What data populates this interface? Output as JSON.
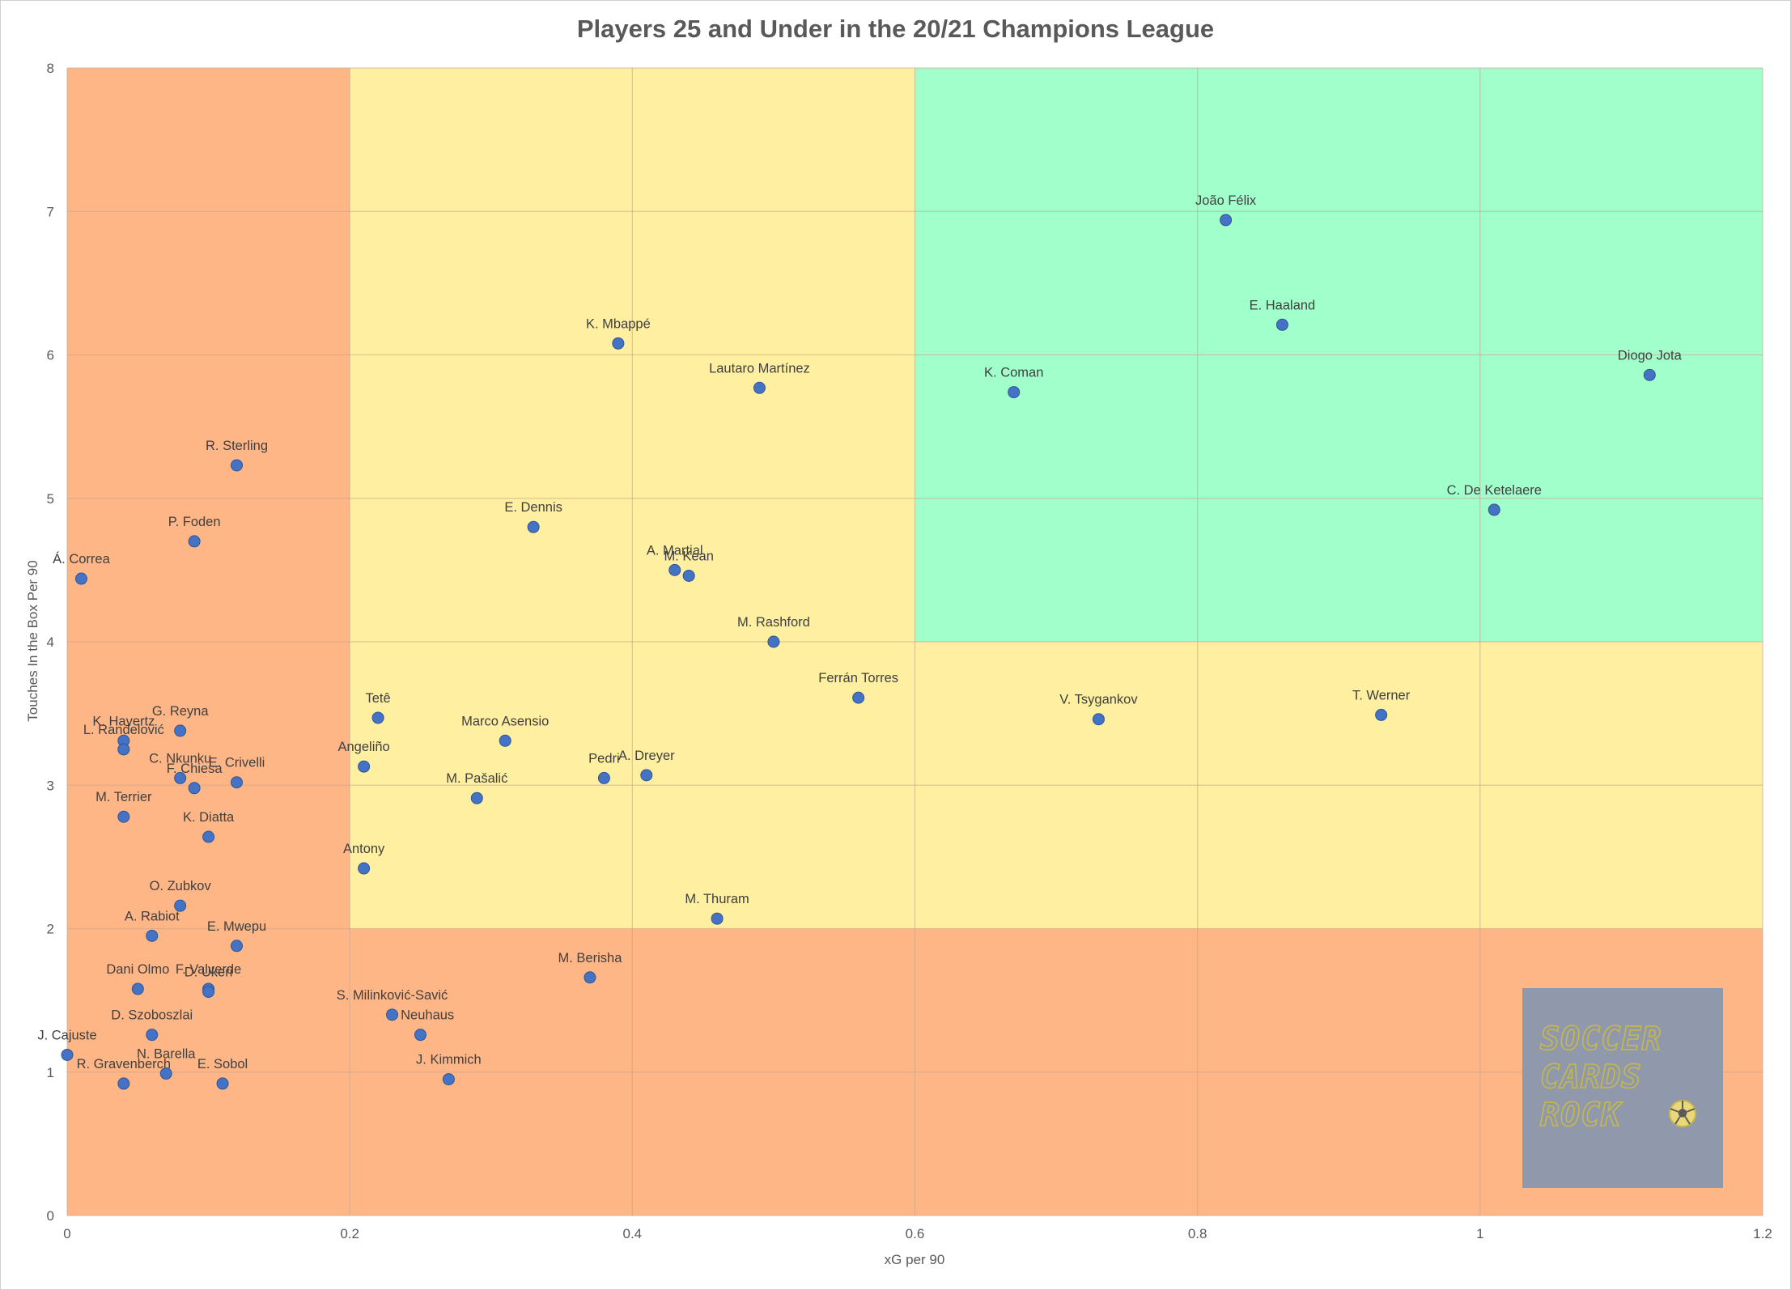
{
  "chart_data": {
    "type": "scatter",
    "title": "Players 25 and Under in the 20/21 Champions League",
    "xlabel": "xG per 90",
    "ylabel": "Touches In the Box Per 90",
    "xlim": [
      0,
      1.2
    ],
    "ylim": [
      0,
      8
    ],
    "x_ticks": [
      "0",
      "0.2",
      "0.4",
      "0.6",
      "0.8",
      "1",
      "1.2"
    ],
    "y_ticks": [
      "0",
      "1",
      "2",
      "3",
      "4",
      "5",
      "6",
      "7",
      "8"
    ],
    "grid": true,
    "regions": [
      {
        "x": [
          0,
          0.2
        ],
        "y": [
          0,
          8
        ],
        "color": "#ffa66b"
      },
      {
        "x": [
          0.2,
          1.2
        ],
        "y": [
          0,
          2
        ],
        "color": "#ffa66b"
      },
      {
        "x": [
          0.2,
          0.6
        ],
        "y": [
          2,
          8
        ],
        "color": "#ffeb8c"
      },
      {
        "x": [
          0.6,
          1.2
        ],
        "y": [
          2,
          4
        ],
        "color": "#ffeb8c"
      },
      {
        "x": [
          0.6,
          1.2
        ],
        "y": [
          4,
          8
        ],
        "color": "#8cffc0"
      }
    ],
    "point_color": "#4472c4",
    "points": [
      {
        "label": "João Félix",
        "x": 0.82,
        "y": 6.94
      },
      {
        "label": "E. Haaland",
        "x": 0.86,
        "y": 6.21
      },
      {
        "label": "Diogo Jota",
        "x": 1.12,
        "y": 5.86
      },
      {
        "label": "K. Coman",
        "x": 0.67,
        "y": 5.74
      },
      {
        "label": "C. De Ketelaere",
        "x": 1.01,
        "y": 4.92
      },
      {
        "label": "K. Mbappé",
        "x": 0.39,
        "y": 6.08
      },
      {
        "label": "Lautaro Martínez",
        "x": 0.49,
        "y": 5.77
      },
      {
        "label": "E. Dennis",
        "x": 0.33,
        "y": 4.8
      },
      {
        "label": "A. Martial",
        "x": 0.43,
        "y": 4.5
      },
      {
        "label": "M. Kean",
        "x": 0.44,
        "y": 4.46
      },
      {
        "label": "M. Rashford",
        "x": 0.5,
        "y": 4.0
      },
      {
        "label": "Ferrán Torres",
        "x": 0.56,
        "y": 3.61
      },
      {
        "label": "V. Tsygankov",
        "x": 0.73,
        "y": 3.46
      },
      {
        "label": "T. Werner",
        "x": 0.93,
        "y": 3.49
      },
      {
        "label": "Tetê",
        "x": 0.22,
        "y": 3.47
      },
      {
        "label": "Marco Asensio",
        "x": 0.31,
        "y": 3.31
      },
      {
        "label": "Angeliño",
        "x": 0.21,
        "y": 3.13
      },
      {
        "label": "Pedri",
        "x": 0.38,
        "y": 3.05
      },
      {
        "label": "A. Dreyer",
        "x": 0.41,
        "y": 3.07
      },
      {
        "label": "M. Pašalić",
        "x": 0.29,
        "y": 2.91
      },
      {
        "label": "Antony",
        "x": 0.21,
        "y": 2.42
      },
      {
        "label": "M. Thuram",
        "x": 0.46,
        "y": 2.07
      },
      {
        "label": "M. Berisha",
        "x": 0.37,
        "y": 1.66
      },
      {
        "label": "S. Milinković-Savić",
        "x": 0.23,
        "y": 1.4
      },
      {
        "label": "F. Neuhaus",
        "x": 0.25,
        "y": 1.26
      },
      {
        "label": "J. Kimmich",
        "x": 0.27,
        "y": 0.95
      },
      {
        "label": "R. Sterling",
        "x": 0.12,
        "y": 5.23
      },
      {
        "label": "P. Foden",
        "x": 0.09,
        "y": 4.7
      },
      {
        "label": "Á. Correa",
        "x": 0.01,
        "y": 4.44
      },
      {
        "label": "G. Reyna",
        "x": 0.08,
        "y": 3.38
      },
      {
        "label": "K. Havertz",
        "x": 0.04,
        "y": 3.31
      },
      {
        "label": "L. Ranđelović",
        "x": 0.04,
        "y": 3.25
      },
      {
        "label": "C. Nkunku",
        "x": 0.08,
        "y": 3.05
      },
      {
        "label": "F. Chiesa",
        "x": 0.09,
        "y": 2.98
      },
      {
        "label": "E. Crivelli",
        "x": 0.12,
        "y": 3.02
      },
      {
        "label": "M. Terrier",
        "x": 0.04,
        "y": 2.78
      },
      {
        "label": "K. Diatta",
        "x": 0.1,
        "y": 2.64
      },
      {
        "label": "O. Zubkov",
        "x": 0.08,
        "y": 2.16
      },
      {
        "label": "A. Rabiot",
        "x": 0.06,
        "y": 1.95
      },
      {
        "label": "E. Mwepu",
        "x": 0.12,
        "y": 1.88
      },
      {
        "label": "Dani Olmo",
        "x": 0.05,
        "y": 1.58
      },
      {
        "label": "F. Valverde",
        "x": 0.1,
        "y": 1.58
      },
      {
        "label": "D. Ukeri",
        "x": 0.1,
        "y": 1.56
      },
      {
        "label": "D. Szoboszlai",
        "x": 0.06,
        "y": 1.26
      },
      {
        "label": "J. Cajuste",
        "x": 0.0,
        "y": 1.12
      },
      {
        "label": "N. Barella",
        "x": 0.07,
        "y": 0.99
      },
      {
        "label": "R. Gravenberch",
        "x": 0.04,
        "y": 0.92
      },
      {
        "label": "E. Sobol",
        "x": 0.11,
        "y": 0.92
      }
    ]
  },
  "logo": {
    "lines": [
      "SOCCER",
      "CARDS",
      "ROCK"
    ],
    "color": "#c8b84a",
    "background": "#8f99ab",
    "icon": "soccer-ball-icon"
  }
}
